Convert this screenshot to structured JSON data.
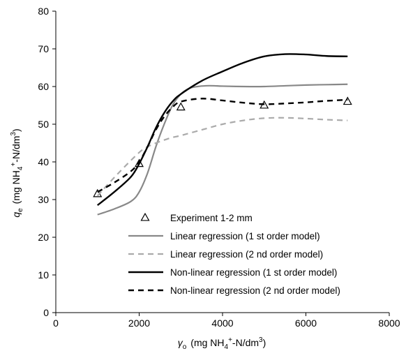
{
  "chart_data": {
    "type": "line",
    "xlabel": {
      "main": "γ",
      "sub": "o",
      "unit_open": "(mg NH",
      "unit_sub": "4",
      "unit_sup": "+",
      "unit_mid": "-N/dm",
      "unit_sup2": "3",
      "unit_close": ")"
    },
    "ylabel": {
      "main": "q",
      "sub": "e",
      "unit_open": "(mg NH",
      "unit_sub": "4",
      "unit_sup": "+",
      "unit_mid": "-N/dm",
      "unit_sup2": "3",
      "unit_close": ")"
    },
    "xlim": [
      0,
      8000
    ],
    "ylim": [
      0,
      80
    ],
    "xticks": [
      "0",
      "2000",
      "4000",
      "6000",
      "8000"
    ],
    "yticks": [
      "0",
      "10",
      "20",
      "30",
      "40",
      "50",
      "60",
      "70",
      "80"
    ],
    "legend_position": "bottom-right",
    "series": [
      {
        "name": "Experiment 1-2 mm",
        "style": "marker-triangle",
        "color": "#000000",
        "x": [
          1000,
          2000,
          3000,
          5000,
          7000
        ],
        "y": [
          31.5,
          39.5,
          54.5,
          55,
          56
        ]
      },
      {
        "name": "Linear regression (1 st order model)",
        "style": "solid",
        "color": "#888888",
        "x": [
          1000,
          1400,
          1800,
          2000,
          2200,
          2400,
          2600,
          2800,
          3000,
          3200,
          3400,
          3600,
          3800,
          4000,
          4500,
          5000,
          5500,
          6000,
          6500,
          7000
        ],
        "y": [
          26,
          27.5,
          29.5,
          32,
          37,
          44,
          50,
          55,
          58,
          59.5,
          60,
          60.2,
          60.2,
          60.1,
          60,
          60,
          60.2,
          60.4,
          60.5,
          60.6
        ]
      },
      {
        "name": "Linear regression (2 nd order model)",
        "style": "dashed",
        "color": "#aaaaaa",
        "x": [
          1000,
          1500,
          2000,
          2200,
          2400,
          2600,
          2800,
          3000,
          3500,
          4000,
          4500,
          5000,
          5500,
          6000,
          6500,
          7000
        ],
        "y": [
          31,
          37,
          42.5,
          44,
          45,
          45.8,
          46.5,
          47,
          48.5,
          50,
          51,
          51.6,
          51.7,
          51.5,
          51.2,
          51
        ]
      },
      {
        "name": "Non-linear regression (1 st order model)",
        "style": "solid",
        "color": "#000000",
        "x": [
          1000,
          1400,
          1800,
          2000,
          2200,
          2400,
          2600,
          2800,
          3000,
          3500,
          4000,
          4500,
          5000,
          5500,
          6000,
          6500,
          7000
        ],
        "y": [
          28.5,
          32,
          36,
          39.5,
          44,
          49,
          53,
          56,
          58,
          61.5,
          64,
          66.3,
          68,
          68.6,
          68.5,
          68.1,
          68
        ]
      },
      {
        "name": "Non-linear regression (2 nd order model)",
        "style": "dashed",
        "color": "#000000",
        "x": [
          1000,
          1400,
          1800,
          2000,
          2200,
          2400,
          2600,
          2800,
          3000,
          3500,
          4000,
          4500,
          5000,
          5500,
          6000,
          6500,
          7000
        ],
        "y": [
          32,
          34.5,
          37.5,
          40,
          44,
          48.5,
          52,
          54.5,
          56,
          56.8,
          56.3,
          55.7,
          55.3,
          55.5,
          55.8,
          56.2,
          56.5
        ]
      }
    ]
  }
}
